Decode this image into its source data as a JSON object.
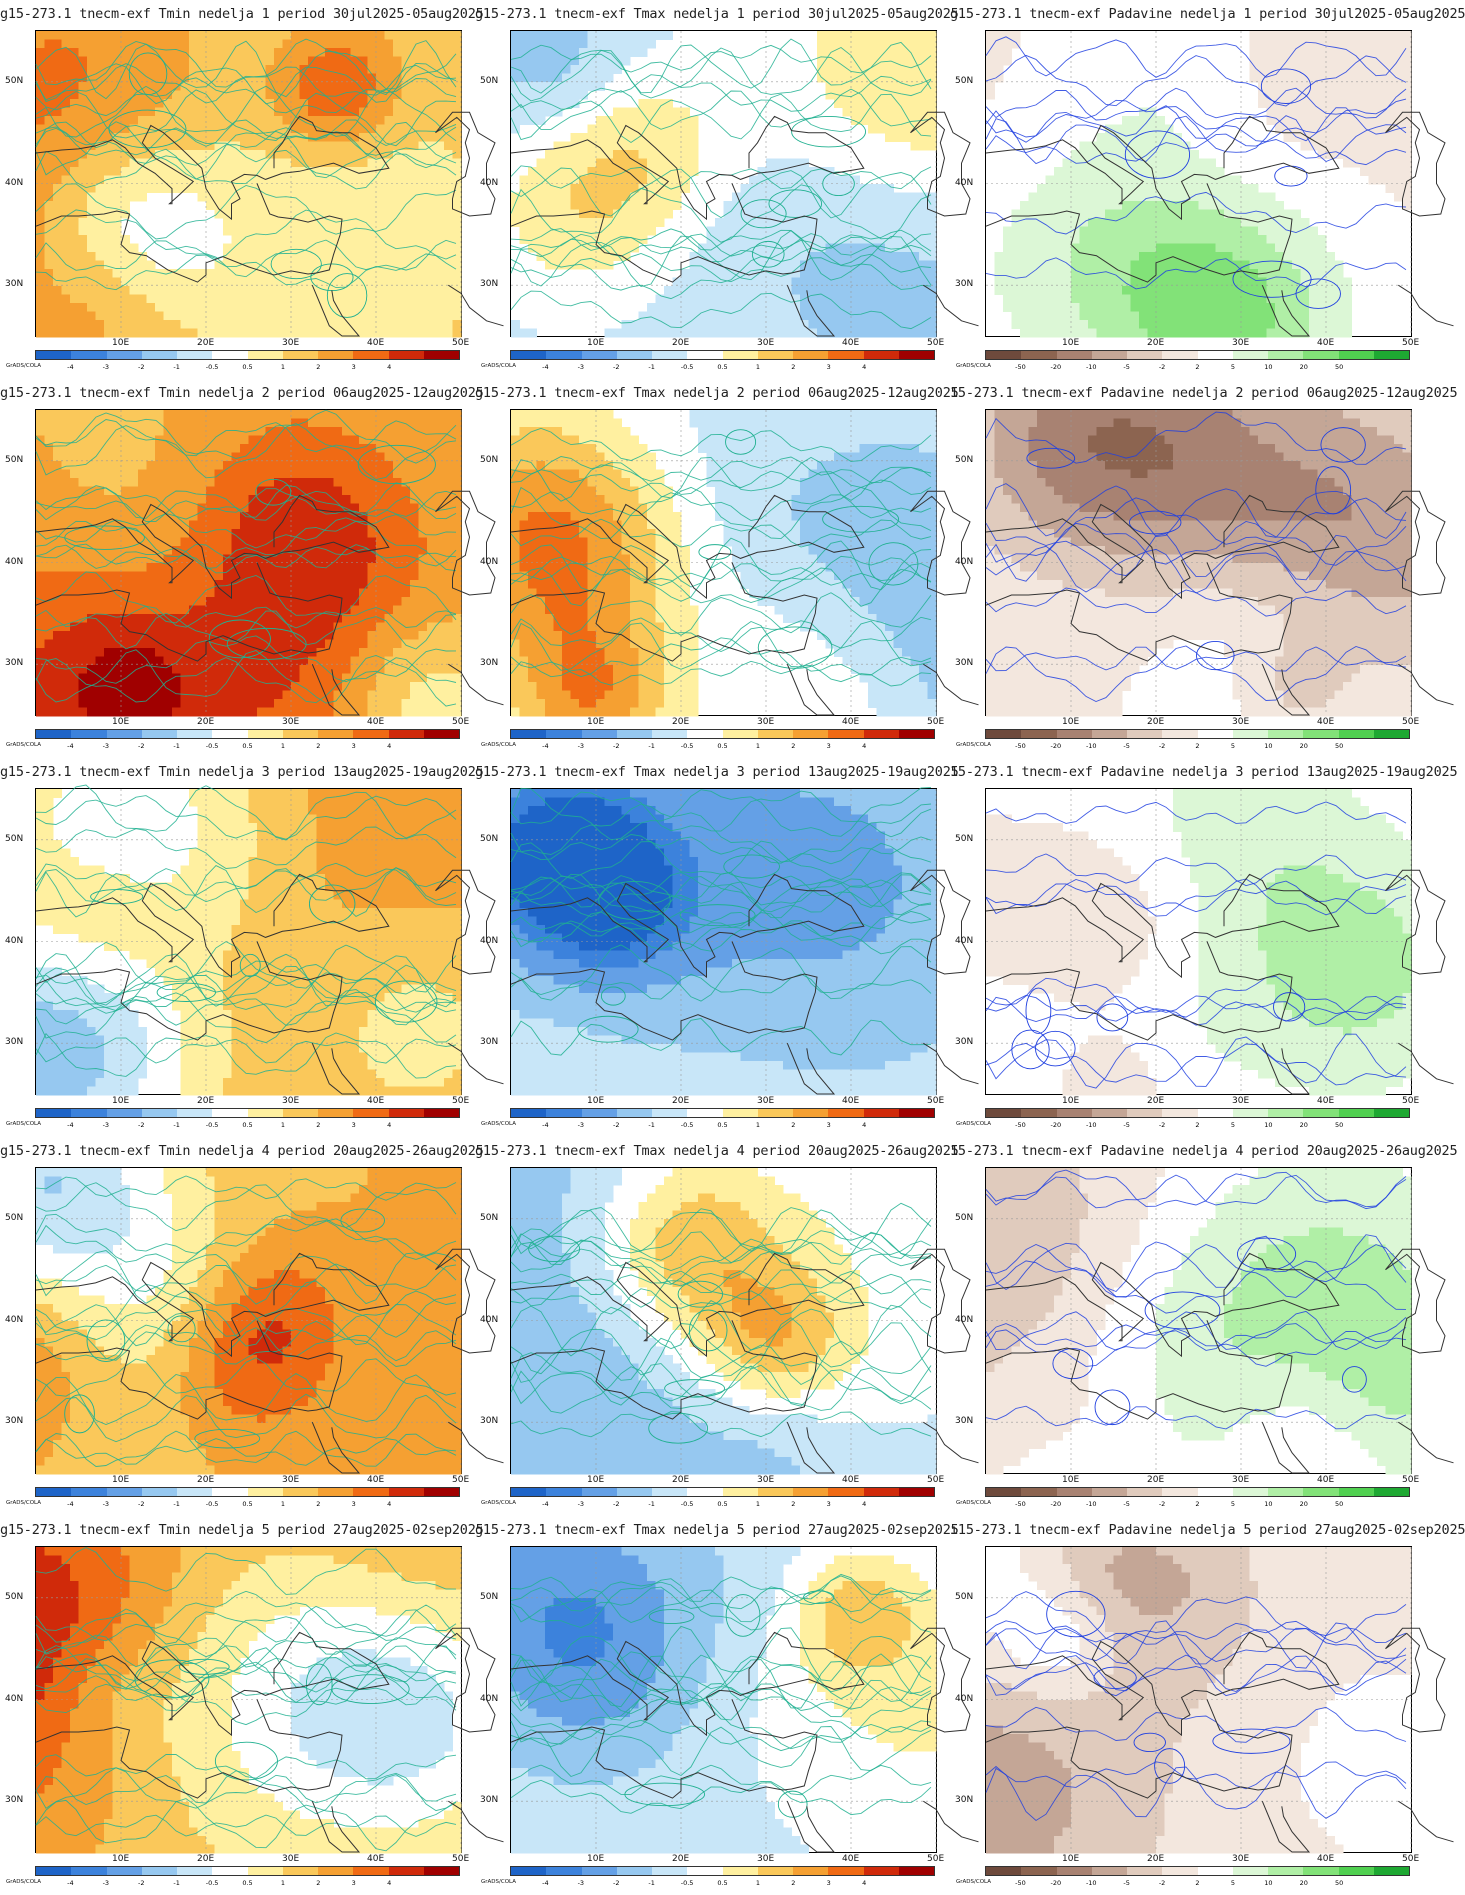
{
  "lat_labels": [
    "50N",
    "40N",
    "30N"
  ],
  "lon_labels": [
    "10E",
    "20E",
    "30E",
    "40E",
    "50E"
  ],
  "grads_tag": "GrADS/COLA",
  "temp_scale": {
    "labels": [
      "-4",
      "-3",
      "-2",
      "-1",
      "-0.5",
      "0.5",
      "1",
      "2",
      "3",
      "4"
    ],
    "colors": [
      "#1e64c8",
      "#3c82dc",
      "#64a0e6",
      "#96c8f0",
      "#c8e6f8",
      "#ffffff",
      "#fff0a0",
      "#fac85a",
      "#f5a032",
      "#f06a14",
      "#d02a0a",
      "#a00000"
    ]
  },
  "precip_scale": {
    "labels": [
      "-50",
      "-20",
      "-10",
      "-5",
      "-2",
      "2",
      "5",
      "10",
      "20",
      "50"
    ],
    "colors": [
      "#6e4a3c",
      "#8c6450",
      "#a88272",
      "#c4a696",
      "#e0cbbd",
      "#f3e7de",
      "#ffffff",
      "#dcf7d6",
      "#b0efa6",
      "#82e278",
      "#50d050",
      "#1ea832"
    ]
  },
  "panels": [
    {
      "title": "g15-273.1 tnecm-exf Tmin nedelja 1 period 30jul2025-05aug2025",
      "scale": "temp"
    },
    {
      "title": "g15-273.1 tnecm-exf Tmax nedelja 1 period 30jul2025-05aug2025",
      "scale": "temp"
    },
    {
      "title": "g15-273.1 tnecm-exf Padavine nedelja 1 period 30jul2025-05aug2025",
      "scale": "precip"
    },
    {
      "title": "g15-273.1 tnecm-exf Tmin nedelja 2 period 06aug2025-12aug2025",
      "scale": "temp"
    },
    {
      "title": "g15-273.1 tnecm-exf Tmax nedelja 2 period 06aug2025-12aug2025",
      "scale": "temp"
    },
    {
      "title": "15-273.1 tnecm-exf Padavine nedelja 2 period 06aug2025-12aug2025",
      "scale": "precip"
    },
    {
      "title": "g15-273.1 tnecm-exf Tmin nedelja 3 period 13aug2025-19aug2025",
      "scale": "temp"
    },
    {
      "title": "g15-273.1 tnecm-exf Tmax nedelja 3 period 13aug2025-19aug2025",
      "scale": "temp"
    },
    {
      "title": "15-273.1 tnecm-exf Padavine nedelja 3 period 13aug2025-19aug2025",
      "scale": "precip"
    },
    {
      "title": "g15-273.1 tnecm-exf Tmin nedelja 4 period 20aug2025-26aug2025",
      "scale": "temp"
    },
    {
      "title": "g15-273.1 tnecm-exf Tmax nedelja 4 period 20aug2025-26aug2025",
      "scale": "temp"
    },
    {
      "title": "15-273.1 tnecm-exf Padavine nedelja 4 period 20aug2025-26aug2025",
      "scale": "precip"
    },
    {
      "title": "g15-273.1 tnecm-exf Tmin nedelja 5 period 27aug2025-02sep2025",
      "scale": "temp"
    },
    {
      "title": "g15-273.1 tnecm-exf Tmax nedelja 5 period 27aug2025-02sep2025",
      "scale": "temp"
    },
    {
      "title": "ı15-273.1 tnecm-exf Padavine nedelja 5 period 27aug2025-02sep2025",
      "scale": "precip"
    }
  ]
}
